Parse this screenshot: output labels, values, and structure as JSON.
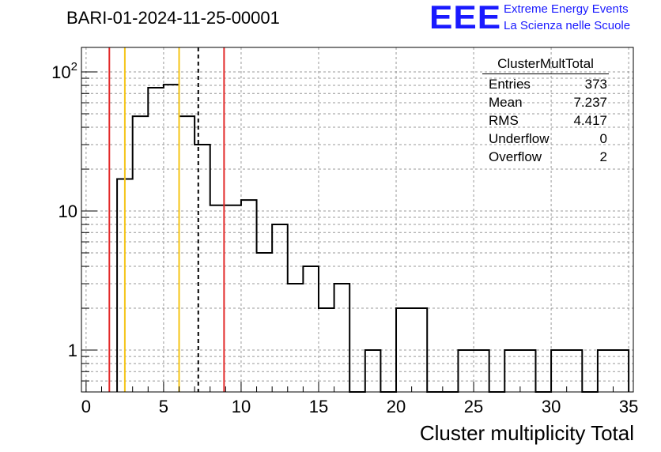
{
  "page_title": "BARI-01-2024-11-25-00001",
  "logo": {
    "mark": "EEE",
    "line1": "Extreme Energy Events",
    "line2": "La Scienza nelle Scuole",
    "color": "#1a1aff"
  },
  "stats_box": {
    "title": "ClusterMultTotal",
    "rows": [
      {
        "label": "Entries",
        "value": "373"
      },
      {
        "label": "Mean",
        "value": "7.237"
      },
      {
        "label": "RMS",
        "value": "4.417"
      },
      {
        "label": "Underflow",
        "value": "0"
      },
      {
        "label": "Overflow",
        "value": "2"
      }
    ]
  },
  "chart_data": {
    "type": "bar",
    "style": "step-histogram",
    "title": "BARI-01-2024-11-25-00001",
    "xlabel": "Cluster multiplicity Total",
    "ylabel": "",
    "yscale": "log",
    "xlim": [
      -0.3,
      35.3
    ],
    "ylim": [
      0.5,
      150
    ],
    "grid": true,
    "x_ticks": [
      0,
      5,
      10,
      15,
      20,
      25,
      30,
      35
    ],
    "x_tick_labels": [
      "0",
      "5",
      "10",
      "15",
      "20",
      "25",
      "30",
      "35"
    ],
    "y_ticks": [
      1,
      10,
      100
    ],
    "y_tick_labels": [
      "1",
      "10",
      "10^2"
    ],
    "bin_width": 1,
    "bin_low_edges": [
      2,
      3,
      4,
      5,
      6,
      7,
      8,
      9,
      10,
      11,
      12,
      13,
      14,
      15,
      16,
      17,
      18,
      19,
      20,
      21,
      22,
      23,
      24,
      25,
      26,
      27,
      28,
      29,
      30,
      31,
      32,
      33,
      34
    ],
    "values": [
      17,
      48,
      77,
      81,
      48,
      30,
      11,
      11,
      12,
      5,
      8,
      3,
      4,
      2,
      3,
      0,
      1,
      0,
      2,
      2,
      0,
      0,
      1,
      1,
      0,
      1,
      1,
      0,
      1,
      1,
      0,
      1,
      1
    ],
    "vertical_lines": [
      {
        "x": 1.5,
        "color": "#e32a2a",
        "style": "solid"
      },
      {
        "x": 2.5,
        "color": "#f5c518",
        "style": "solid"
      },
      {
        "x": 6.0,
        "color": "#f5c518",
        "style": "solid"
      },
      {
        "x": 7.237,
        "color": "#000000",
        "style": "dashed"
      },
      {
        "x": 8.9,
        "color": "#e32a2a",
        "style": "solid"
      }
    ]
  }
}
